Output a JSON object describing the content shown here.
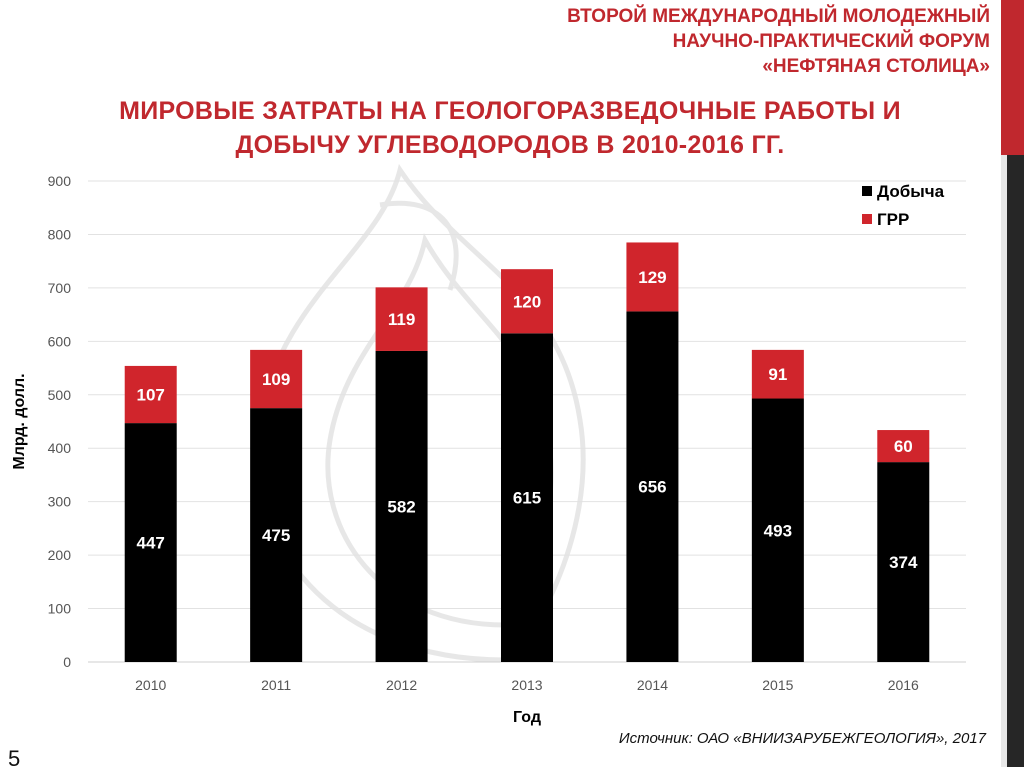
{
  "header": {
    "forum_lines": [
      "ВТОРОЙ МЕЖДУНАРОДНЫЙ МОЛОДЕЖНЫЙ",
      "НАУЧНО-ПРАКТИЧЕСКИЙ ФОРУМ",
      "«НЕФТЯНАЯ СТОЛИЦА»"
    ],
    "accent_color": "#c0282e"
  },
  "slide_title_lines": [
    "МИРОВЫЕ ЗАТРАТЫ НА ГЕОЛОГОРАЗВЕДОЧНЫЕ РАБОТЫ И",
    "ДОБЫЧУ УГЛЕВОДОРОДОВ В 2010-2016 ГГ."
  ],
  "chart_data": {
    "type": "bar",
    "stacked": true,
    "categories": [
      "2010",
      "2011",
      "2012",
      "2013",
      "2014",
      "2015",
      "2016"
    ],
    "series": [
      {
        "name": "Добыча",
        "color": "#000000",
        "values": [
          447,
          475,
          582,
          615,
          656,
          493,
          374
        ]
      },
      {
        "name": "ГРР",
        "color": "#d0252c",
        "values": [
          107,
          109,
          119,
          120,
          129,
          91,
          60
        ]
      }
    ],
    "xlabel": "Год",
    "ylabel": "Млрд. долл.",
    "ylim": [
      0,
      900
    ],
    "yticks": [
      0,
      100,
      200,
      300,
      400,
      500,
      600,
      700,
      800,
      900
    ],
    "grid": true,
    "legend_position": "top-right"
  },
  "footer": {
    "source": "Источник: ОАО «ВНИИЗАРУБЕЖГЕОЛОГИЯ», 2017",
    "page_number": "5"
  }
}
